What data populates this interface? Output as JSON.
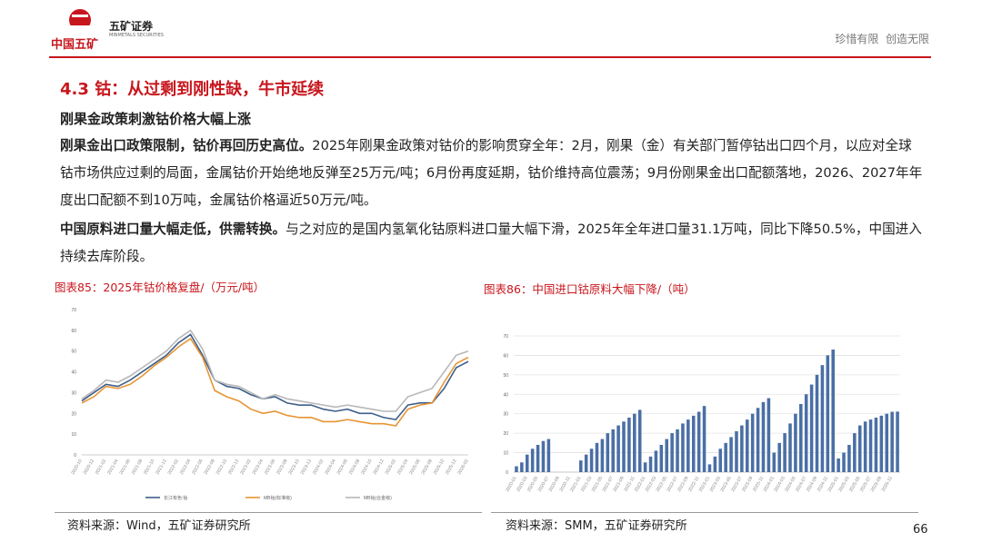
{
  "header": {
    "logo_text": "中国五矿",
    "brand": "五矿证券",
    "brand_en": "MINMETALS SECURITIES",
    "slogan": "珍惜有限  创造无限"
  },
  "title": "4.3 钴：从过剩到刚性缺，牛市延续",
  "subtitle": "刚果金政策刺激钴价格大幅上涨",
  "paragraphs": [
    {
      "lead": "刚果金出口政策限制，钴价再回历史高位。",
      "text": "2025年刚果金政策对钴价的影响贯穿全年：2月，刚果（金）有关部门暂停钴出口四个月，以应对全球钴市场供应过剩的局面，金属钴价开始绝地反弹至25万元/吨；6月份再度延期，钴价维持高位震荡；9月份刚果金出口配额落地，2026、2027年年度出口配额不到10万吨，金属钴价格逼近50万元/吨。"
    },
    {
      "lead": "中国原料进口量大幅走低，供需转换。",
      "text": "与之对应的是国内氢氧化钴原料进口量大幅下滑，2025年全年进口量31.1万吨，同比下降50.5%，中国进入持续去库阶段。"
    }
  ],
  "sources": [
    "资料来源：Wind，五矿证券研究所",
    "资料来源：SMM，五矿证券研究所"
  ],
  "page_number": "66",
  "chart_data": [
    {
      "type": "line",
      "title": "图表85：2025年钴价格复盘/（万元/吨）",
      "categories": [
        "2020-10",
        "2020-12",
        "2021-02",
        "2021-04",
        "2021-06",
        "2021-08",
        "2021-10",
        "2021-12",
        "2022-02",
        "2022-04",
        "2022-06",
        "2022-08",
        "2022-10",
        "2022-12",
        "2023-02",
        "2023-04",
        "2023-06",
        "2023-08",
        "2023-10",
        "2023-12",
        "2024-02",
        "2024-04",
        "2024-06",
        "2024-08",
        "2024-10",
        "2024-12",
        "2025-02",
        "2025-04",
        "2025-06",
        "2025-08",
        "2025-10",
        "2025-12",
        "2026-02"
      ],
      "series": [
        {
          "name": "长江有色:钴",
          "color": "#3e5f8a",
          "values": [
            26,
            30,
            34,
            33,
            36,
            40,
            44,
            48,
            54,
            58,
            48,
            36,
            33,
            32,
            29,
            27,
            28,
            25,
            24,
            24,
            22,
            21,
            22,
            20,
            20,
            18,
            17,
            24,
            25,
            25,
            32,
            42,
            45
          ]
        },
        {
          "name": "MB钴(标准级)",
          "color": "#e69535",
          "values": [
            25,
            28,
            33,
            32,
            34,
            38,
            43,
            47,
            52,
            56,
            47,
            31,
            28,
            26,
            22,
            20,
            21,
            19,
            18,
            18,
            16,
            16,
            17,
            16,
            15,
            15,
            14,
            22,
            24,
            25,
            35,
            44,
            47
          ]
        },
        {
          "name": "MB钴(合金级)",
          "color": "#b8b8b8",
          "values": [
            27,
            31,
            36,
            35,
            38,
            42,
            46,
            50,
            56,
            60,
            51,
            36,
            34,
            33,
            30,
            27,
            29,
            27,
            26,
            25,
            24,
            23,
            24,
            23,
            22,
            21,
            21,
            28,
            30,
            32,
            40,
            48,
            50
          ]
        }
      ],
      "ylim": [
        0,
        70
      ],
      "yticks": [
        0,
        10,
        20,
        30,
        40,
        50,
        60,
        70
      ],
      "grid": false,
      "legend": "bottom"
    },
    {
      "type": "bar",
      "title": "图表86：中国进口钴原料大幅下降/（吨）",
      "color": "#4a6fa5",
      "categories": [
        "2020-01",
        "2020-02",
        "2020-03",
        "2020-04",
        "2020-05",
        "2020-06",
        "2020-07",
        "2020-08",
        "2020-09",
        "2020-10",
        "2020-11",
        "2020-12",
        "2021-01",
        "2021-02",
        "2021-03",
        "2021-04",
        "2021-05",
        "2021-06",
        "2021-07",
        "2021-08",
        "2021-09",
        "2021-10",
        "2021-11",
        "2021-12",
        "2022-01",
        "2022-02",
        "2022-03",
        "2022-04",
        "2022-05",
        "2022-06",
        "2022-07",
        "2022-08",
        "2022-09",
        "2022-10",
        "2022-11",
        "2022-12",
        "2023-01",
        "2023-02",
        "2023-03",
        "2023-04",
        "2023-05",
        "2023-06",
        "2023-07",
        "2023-08",
        "2023-09",
        "2023-10",
        "2023-11",
        "2023-12",
        "2024-01",
        "2024-02",
        "2024-03",
        "2024-04",
        "2024-05",
        "2024-06",
        "2024-07",
        "2024-08",
        "2024-09",
        "2024-10",
        "2024-11",
        "2024-12",
        "2025-01",
        "2025-02",
        "2025-03",
        "2025-04",
        "2025-05",
        "2025-06",
        "2025-07",
        "2025-08",
        "2025-09",
        "2025-10",
        "2025-11",
        "2025-12"
      ],
      "values": [
        3,
        5,
        9,
        12,
        14,
        16,
        17,
        null,
        null,
        null,
        null,
        null,
        6,
        9,
        12,
        15,
        17,
        20,
        22,
        24,
        26,
        28,
        30,
        32,
        5,
        8,
        11,
        14,
        17,
        20,
        22,
        25,
        27,
        29,
        31,
        34,
        4,
        8,
        12,
        15,
        18,
        21,
        24,
        27,
        30,
        33,
        36,
        38,
        10,
        15,
        20,
        25,
        30,
        35,
        40,
        45,
        50,
        55,
        60,
        63,
        7,
        10,
        14,
        20,
        24,
        26,
        27,
        28,
        29,
        30,
        31,
        31.1
      ],
      "ylim": [
        0,
        70
      ],
      "yticks": [
        0,
        10,
        20,
        30,
        40,
        50,
        60,
        70
      ],
      "grid": true
    }
  ]
}
